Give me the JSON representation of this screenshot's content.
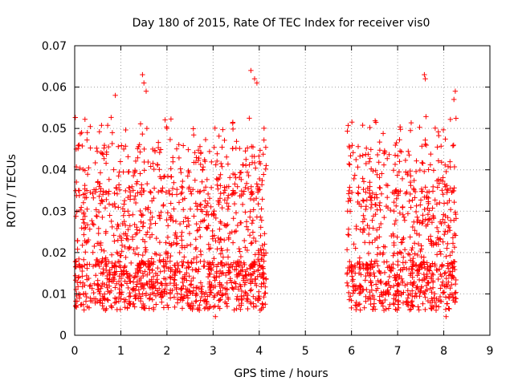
{
  "chart_data": {
    "type": "scatter",
    "title": "Day 180 of 2015, Rate Of TEC Index for receiver vis0",
    "xlabel": "GPS time / hours",
    "ylabel": "ROTI / TECUs",
    "xlim": [
      0,
      9
    ],
    "ylim": [
      0,
      0.07
    ],
    "xticks": [
      "0",
      "1",
      "2",
      "3",
      "4",
      "5",
      "6",
      "7",
      "8",
      "9"
    ],
    "yticks": [
      "0",
      "0.01",
      "0.02",
      "0.03",
      "0.04",
      "0.05",
      "0.06",
      "0.07"
    ],
    "grid": true,
    "marker": "+",
    "series": [
      {
        "name": "ROTI",
        "color": "#ff0000",
        "segments": [
          {
            "x_start": 0.0,
            "x_end": 4.15
          },
          {
            "x_start": 5.9,
            "x_end": 8.27
          }
        ],
        "typical_range": [
          0.005,
          0.045
        ],
        "notable_points": [
          {
            "x": 1.47,
            "y": 0.063
          },
          {
            "x": 1.5,
            "y": 0.061
          },
          {
            "x": 1.55,
            "y": 0.059
          },
          {
            "x": 3.82,
            "y": 0.064
          },
          {
            "x": 3.9,
            "y": 0.062
          },
          {
            "x": 3.95,
            "y": 0.061
          },
          {
            "x": 7.58,
            "y": 0.063
          },
          {
            "x": 7.6,
            "y": 0.062
          },
          {
            "x": 8.25,
            "y": 0.059
          },
          {
            "x": 8.22,
            "y": 0.057
          },
          {
            "x": 0.88,
            "y": 0.058
          },
          {
            "x": 2.0,
            "y": 0.05
          },
          {
            "x": 0.15,
            "y": 0.049
          },
          {
            "x": 3.05,
            "y": 0.0045
          },
          {
            "x": 8.05,
            "y": 0.0045
          }
        ]
      }
    ]
  }
}
